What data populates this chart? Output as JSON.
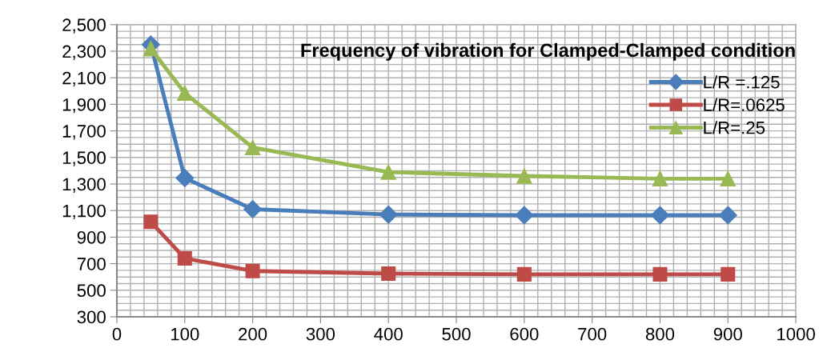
{
  "chart_data": {
    "type": "line",
    "title": "Frequency of vibration for Clamped-Clamped condition",
    "x": [
      50,
      100,
      200,
      400,
      600,
      800,
      900
    ],
    "series": [
      {
        "name": "L/R =.125",
        "color": "#4a7ebb",
        "marker": "diamond",
        "values": [
          2350,
          1345,
          1110,
          1070,
          1065,
          1065,
          1065
        ]
      },
      {
        "name": "L/R=.0625",
        "color": "#be4b48",
        "marker": "square",
        "values": [
          1015,
          740,
          645,
          625,
          620,
          620,
          620
        ]
      },
      {
        "name": "L/R=.25",
        "color": "#98b954",
        "marker": "triangle",
        "values": [
          2320,
          1985,
          1575,
          1390,
          1360,
          1340,
          1340
        ]
      }
    ],
    "xlim": [
      0,
      1000
    ],
    "xticks": [
      0,
      100,
      200,
      300,
      400,
      500,
      600,
      700,
      800,
      900,
      1000
    ],
    "ylim": [
      300,
      2500
    ],
    "yticks": [
      {
        "value": 300,
        "label": "300"
      },
      {
        "value": 500,
        "label": "500"
      },
      {
        "value": 700,
        "label": "700"
      },
      {
        "value": 900,
        "label": "900"
      },
      {
        "value": 1100,
        "label": "1,100"
      },
      {
        "value": 1300,
        "label": "1,300"
      },
      {
        "value": 1500,
        "label": "1,500"
      },
      {
        "value": 1700,
        "label": "1,700"
      },
      {
        "value": 1900,
        "label": "1,900"
      },
      {
        "value": 2100,
        "label": "2,100"
      },
      {
        "value": 2300,
        "label": "2,300"
      },
      {
        "value": 2500,
        "label": "2,500"
      }
    ],
    "grid": true,
    "legend": "right",
    "line_style": "solid"
  }
}
